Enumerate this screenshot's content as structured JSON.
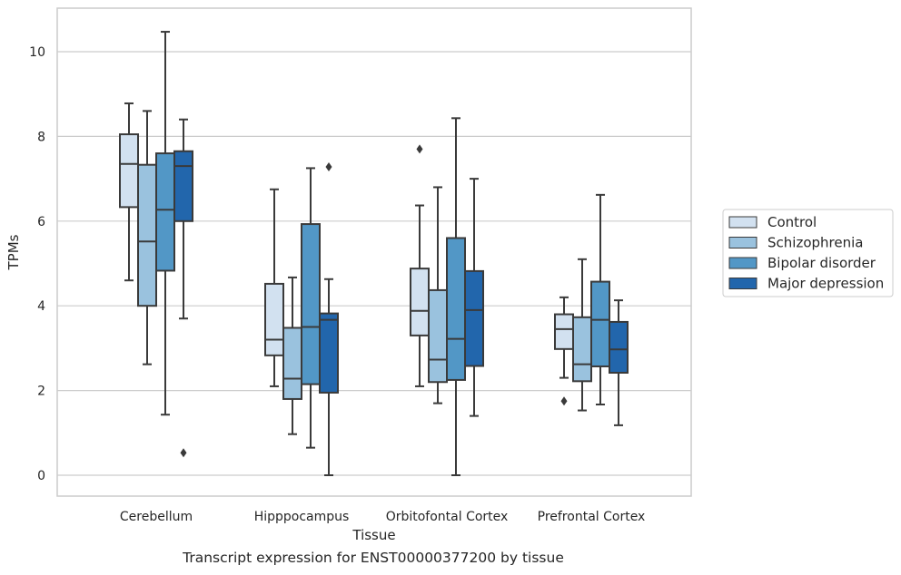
{
  "caption": "Transcript expression for ENST00000377200 by tissue",
  "chart_data": {
    "type": "box",
    "xlabel": "Tissue",
    "ylabel": "TPMs",
    "ylim": [
      -0.5,
      11.0
    ],
    "yticks": [
      0,
      2,
      4,
      6,
      8,
      10
    ],
    "grid": "horizontal",
    "legend_position": "right",
    "categories": [
      "Cerebellum",
      "Hipppocampus",
      "Orbitofontal Cortex",
      "Prefrontal Cortex"
    ],
    "series": [
      {
        "name": "Control",
        "color": "#d2e1f0",
        "boxes": [
          {
            "whisker_low": 4.6,
            "q1": 6.33,
            "median": 7.35,
            "q3": 8.05,
            "whisker_high": 8.78,
            "outliers": []
          },
          {
            "whisker_low": 2.1,
            "q1": 2.83,
            "median": 3.2,
            "q3": 4.52,
            "whisker_high": 6.75,
            "outliers": []
          },
          {
            "whisker_low": 2.1,
            "q1": 3.3,
            "median": 3.88,
            "q3": 4.88,
            "whisker_high": 6.37,
            "outliers": [
              7.7
            ]
          },
          {
            "whisker_low": 2.3,
            "q1": 2.98,
            "median": 3.45,
            "q3": 3.8,
            "whisker_high": 4.2,
            "outliers": [
              1.75
            ]
          }
        ]
      },
      {
        "name": "Schizophrenia",
        "color": "#9ac2de",
        "boxes": [
          {
            "whisker_low": 2.62,
            "q1": 4.0,
            "median": 5.52,
            "q3": 7.33,
            "whisker_high": 8.6,
            "outliers": []
          },
          {
            "whisker_low": 0.97,
            "q1": 1.8,
            "median": 2.28,
            "q3": 3.48,
            "whisker_high": 4.67,
            "outliers": []
          },
          {
            "whisker_low": 1.7,
            "q1": 2.2,
            "median": 2.73,
            "q3": 4.37,
            "whisker_high": 6.8,
            "outliers": []
          },
          {
            "whisker_low": 1.53,
            "q1": 2.22,
            "median": 2.62,
            "q3": 3.73,
            "whisker_high": 5.1,
            "outliers": []
          }
        ]
      },
      {
        "name": "Bipolar disorder",
        "color": "#5297c6",
        "boxes": [
          {
            "whisker_low": 1.43,
            "q1": 4.83,
            "median": 6.27,
            "q3": 7.6,
            "whisker_high": 10.47,
            "outliers": []
          },
          {
            "whisker_low": 0.65,
            "q1": 2.15,
            "median": 3.5,
            "q3": 5.93,
            "whisker_high": 7.25,
            "outliers": []
          },
          {
            "whisker_low": 0.0,
            "q1": 2.25,
            "median": 3.22,
            "q3": 5.6,
            "whisker_high": 8.43,
            "outliers": []
          },
          {
            "whisker_low": 1.67,
            "q1": 2.57,
            "median": 3.67,
            "q3": 4.57,
            "whisker_high": 6.62,
            "outliers": []
          }
        ]
      },
      {
        "name": "Major depression",
        "color": "#2266ac",
        "boxes": [
          {
            "whisker_low": 3.7,
            "q1": 6.0,
            "median": 7.3,
            "q3": 7.65,
            "whisker_high": 8.4,
            "outliers": [
              0.53
            ]
          },
          {
            "whisker_low": 0.0,
            "q1": 1.95,
            "median": 3.67,
            "q3": 3.82,
            "whisker_high": 4.63,
            "outliers": [
              7.28
            ]
          },
          {
            "whisker_low": 1.4,
            "q1": 2.58,
            "median": 3.9,
            "q3": 4.82,
            "whisker_high": 7.0,
            "outliers": []
          },
          {
            "whisker_low": 1.18,
            "q1": 2.42,
            "median": 2.97,
            "q3": 3.62,
            "whisker_high": 4.13,
            "outliers": []
          }
        ]
      }
    ]
  }
}
